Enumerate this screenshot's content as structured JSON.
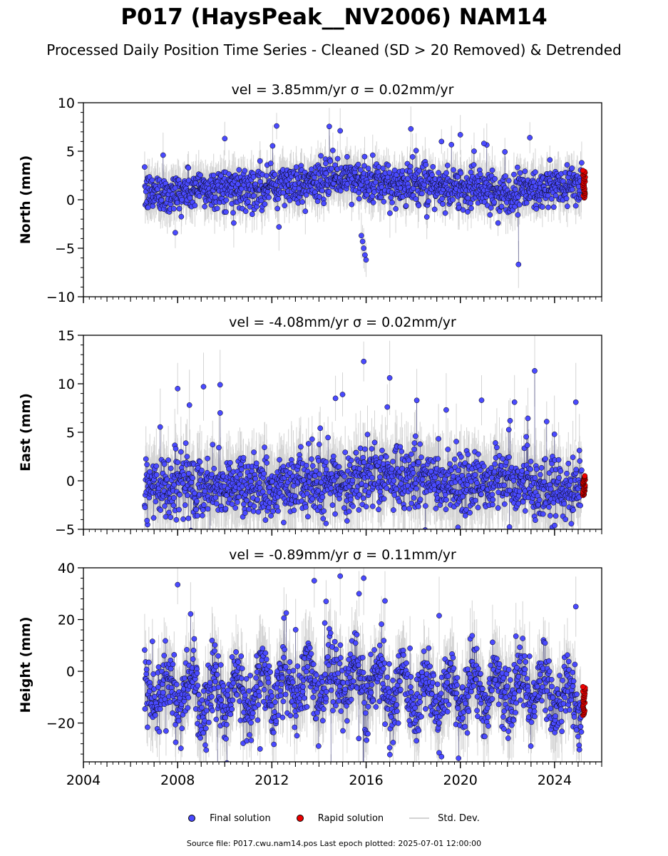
{
  "title": "P017 (HaysPeak__NV2006) NAM14",
  "subtitle": "Processed Daily Position Time Series - Cleaned (SD > 20 Removed) & Detrended",
  "legend": {
    "final": "Final solution",
    "rapid": "Rapid solution",
    "std": "Std. Dev."
  },
  "footer": "Source file: P017.cwu.nam14.pos  Last epoch plotted: 2025-07-01 12:00:00",
  "colors": {
    "final": "#4a4aff",
    "rapid": "#ee0000",
    "std": "#b0b0b0",
    "edge": "#000000"
  },
  "chart_data": [
    {
      "type": "scatter",
      "title": "vel = 3.85mm/yr   σ = 0.02mm/yr",
      "ylabel": "North (mm)",
      "xlim": [
        2004,
        2026
      ],
      "ylim": [
        -10,
        10
      ],
      "yticks": [
        -10,
        -5,
        0,
        5,
        10
      ],
      "ytick_labels": [
        "−10",
        "−5",
        "0",
        "5",
        "10"
      ],
      "xticks": [
        2004,
        2008,
        2012,
        2016,
        2020,
        2024
      ],
      "xtick_labels": [
        "",
        "",
        "",
        "",
        "",
        ""
      ],
      "series": [
        {
          "name": "Final solution",
          "x_range": [
            2006.6,
            2025.15
          ],
          "baseline": 1.0,
          "profile": [
            [
              2006.6,
              0.6
            ],
            [
              2008,
              0.8
            ],
            [
              2010,
              1.2
            ],
            [
              2012,
              1.4
            ],
            [
              2014,
              1.8
            ],
            [
              2015.5,
              2.4
            ],
            [
              2016,
              1.6
            ],
            [
              2018,
              1.5
            ],
            [
              2020,
              1.3
            ],
            [
              2022,
              0.8
            ],
            [
              2024,
              1.2
            ],
            [
              2025.15,
              1.9
            ]
          ],
          "noise": 1.0,
          "outliers": [
            [
              2007.9,
              -3.4
            ],
            [
              2010.0,
              6.3
            ],
            [
              2012.2,
              7.6
            ],
            [
              2012.3,
              -2.8
            ],
            [
              2014.9,
              7.1
            ],
            [
              2015.8,
              -3.7
            ],
            [
              2015.85,
              -4.3
            ],
            [
              2015.9,
              -5.0
            ],
            [
              2015.95,
              -5.7
            ],
            [
              2016.0,
              -6.2
            ],
            [
              2017.9,
              7.3
            ],
            [
              2019.2,
              6.0
            ],
            [
              2020.0,
              6.7
            ],
            [
              2021.0,
              5.8
            ],
            [
              2022.95,
              6.4
            ],
            [
              2021.6,
              -2.4
            ],
            [
              2023.8,
              4.1
            ]
          ]
        },
        {
          "name": "Rapid solution",
          "x_range": [
            2025.2,
            2025.3
          ],
          "y_range": [
            0.2,
            3.0
          ]
        }
      ]
    },
    {
      "type": "scatter",
      "title": "vel = -4.08mm/yr   σ = 0.02mm/yr",
      "ylabel": "East (mm)",
      "xlim": [
        2004,
        2026
      ],
      "ylim": [
        -5,
        15
      ],
      "yticks": [
        -5,
        0,
        5,
        10,
        15
      ],
      "ytick_labels": [
        "−5",
        "0",
        "5",
        "10",
        "15"
      ],
      "xticks": [
        2004,
        2008,
        2012,
        2016,
        2020,
        2024
      ],
      "xtick_labels": [
        "",
        "",
        "",
        "",
        "",
        ""
      ],
      "series": [
        {
          "name": "Final solution",
          "x_range": [
            2006.6,
            2025.15
          ],
          "baseline": -0.5,
          "profile": [
            [
              2006.6,
              -0.8
            ],
            [
              2008,
              -0.3
            ],
            [
              2010,
              -0.6
            ],
            [
              2012,
              -1.0
            ],
            [
              2014,
              -0.2
            ],
            [
              2016,
              0.3
            ],
            [
              2017,
              0.6
            ],
            [
              2018,
              0.0
            ],
            [
              2020,
              -0.2
            ],
            [
              2022,
              0.1
            ],
            [
              2024,
              -1.2
            ],
            [
              2025.15,
              -0.8
            ]
          ],
          "noise": 1.6,
          "outliers": [
            [
              2006.7,
              -4.1
            ],
            [
              2008.0,
              9.5
            ],
            [
              2009.1,
              9.7
            ],
            [
              2009.8,
              9.9
            ],
            [
              2008.5,
              7.8
            ],
            [
              2015.9,
              12.3
            ],
            [
              2017.0,
              10.6
            ],
            [
              2014.7,
              8.5
            ],
            [
              2015.0,
              8.9
            ],
            [
              2016.9,
              7.6
            ],
            [
              2019.4,
              7.3
            ],
            [
              2020.9,
              8.3
            ],
            [
              2022.3,
              8.1
            ],
            [
              2024.9,
              8.1
            ],
            [
              2012.5,
              -4.3
            ],
            [
              2014.3,
              -4.4
            ],
            [
              2019.9,
              -4.8
            ],
            [
              2023.9,
              -4.8
            ],
            [
              2024.0,
              -4.6
            ]
          ]
        },
        {
          "name": "Rapid solution",
          "x_range": [
            2025.2,
            2025.3
          ],
          "y_range": [
            -1.5,
            0.5
          ]
        }
      ]
    },
    {
      "type": "scatter",
      "title": "vel = -0.89mm/yr   σ = 0.11mm/yr",
      "ylabel": "Height (mm)",
      "xlim": [
        2004,
        2026
      ],
      "ylim": [
        -35,
        40
      ],
      "yticks": [
        -20,
        0,
        20,
        40
      ],
      "ytick_labels": [
        "−20",
        "0",
        "20",
        "40"
      ],
      "xticks": [
        2004,
        2008,
        2012,
        2016,
        2020,
        2024
      ],
      "xtick_labels": [
        "2004",
        "2008",
        "2012",
        "2016",
        "2020",
        "2024"
      ],
      "series": [
        {
          "name": "Final solution",
          "x_range": [
            2006.6,
            2025.15
          ],
          "baseline": -8,
          "profile": [
            [
              2006.6,
              -8
            ],
            [
              2010,
              -9
            ],
            [
              2014,
              -4
            ],
            [
              2016,
              -3
            ],
            [
              2018,
              -10
            ],
            [
              2020,
              -8
            ],
            [
              2022,
              -6
            ],
            [
              2025.15,
              -10
            ]
          ],
          "noise": 6.0,
          "seasonal_amp": 7.0,
          "outliers": [
            [
              2008.0,
              33.5
            ],
            [
              2013.8,
              35.0
            ],
            [
              2014.9,
              36.8
            ],
            [
              2015.9,
              36.0
            ],
            [
              2014.3,
              27.0
            ],
            [
              2015.7,
              30.0
            ],
            [
              2016.8,
              27.2
            ],
            [
              2019.1,
              21.5
            ],
            [
              2011.5,
              -30.0
            ],
            [
              2017.0,
              -29.5
            ],
            [
              2019.1,
              -31.5
            ],
            [
              2019.2,
              -33.0
            ],
            [
              2024.9,
              25.0
            ]
          ]
        },
        {
          "name": "Rapid solution",
          "x_range": [
            2025.2,
            2025.3
          ],
          "y_range": [
            -17,
            -6
          ]
        }
      ]
    }
  ]
}
